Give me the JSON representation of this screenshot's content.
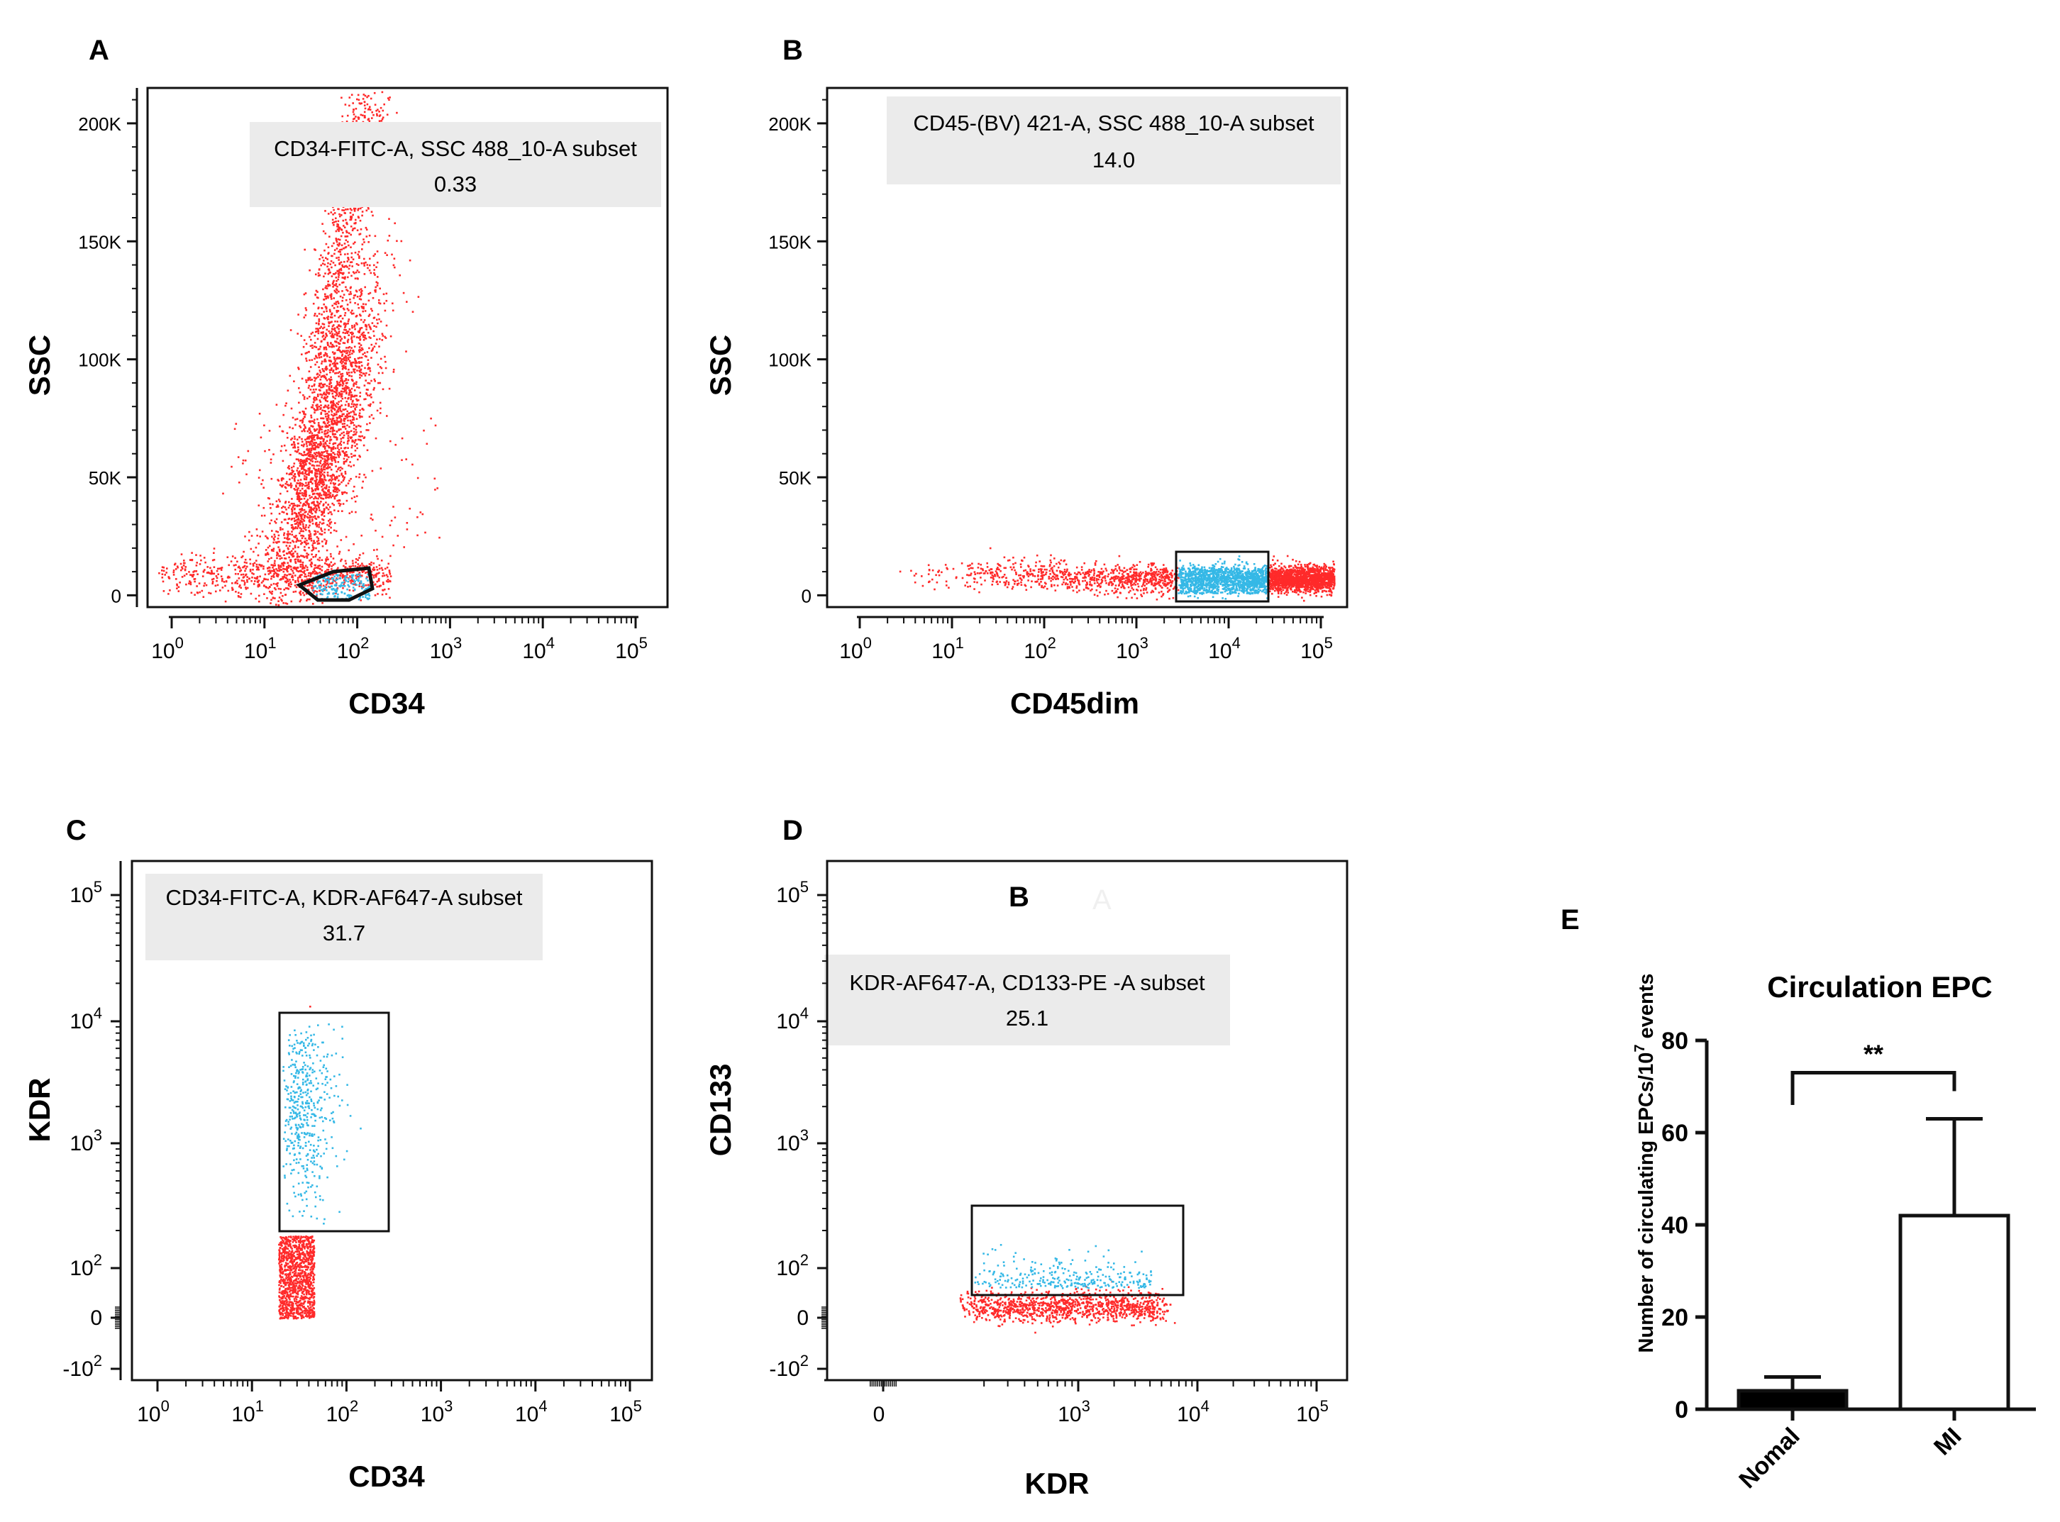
{
  "figure": {
    "panels": [
      {
        "letter": "A",
        "xlabel": "CD34",
        "ylabel": "SSC",
        "gate_title": "CD34-FITC-A, SSC 488_10-A subset",
        "gate_value": "0.33"
      },
      {
        "letter": "B",
        "xlabel": "CD45dim",
        "ylabel": "SSC",
        "gate_title": "CD45-(BV) 421-A, SSC 488_10-A subset",
        "gate_value": "14.0"
      },
      {
        "letter": "C",
        "xlabel": "CD34",
        "ylabel": "KDR",
        "gate_title": "CD34-FITC-A, KDR-AF647-A subset",
        "gate_value": "31.7"
      },
      {
        "letter": "D",
        "xlabel": "KDR",
        "ylabel": "CD133",
        "gate_title": "KDR-AF647-A, CD133-PE -A subset",
        "gate_value": "25.1",
        "overlay_label": "B",
        "overlay_faint": "A"
      },
      {
        "letter": "E"
      }
    ]
  },
  "chart_data": [
    {
      "type": "scatter",
      "panel": "A",
      "title": "",
      "xlabel": "CD34",
      "ylabel": "SSC",
      "x_scale": "log",
      "xlim": [
        1,
        100000
      ],
      "ylim": [
        -5000,
        215000
      ],
      "x_ticks": [
        {
          "base": "10",
          "exp": "0"
        },
        {
          "base": "10",
          "exp": "1"
        },
        {
          "base": "10",
          "exp": "2"
        },
        {
          "base": "10",
          "exp": "3"
        },
        {
          "base": "10",
          "exp": "4"
        },
        {
          "base": "10",
          "exp": "5"
        }
      ],
      "y_ticks": [
        {
          "label": "0",
          "value": 0
        },
        {
          "label": "50K",
          "value": 50000
        },
        {
          "label": "100K",
          "value": 100000
        },
        {
          "label": "150K",
          "value": 150000
        },
        {
          "label": "200K",
          "value": 200000
        }
      ],
      "gate": {
        "name": "CD34-FITC-A, SSC 488_10-A subset",
        "percent": 0.33,
        "shape": "polygon",
        "x_range": [
          25,
          200
        ],
        "y_range": [
          2000,
          15000
        ]
      },
      "populations": [
        {
          "name": "ungated",
          "color": "#ff2a2a"
        },
        {
          "name": "gated",
          "color": "#35b8e6"
        }
      ]
    },
    {
      "type": "scatter",
      "panel": "B",
      "title": "",
      "xlabel": "CD45dim",
      "ylabel": "SSC",
      "x_scale": "log",
      "xlim": [
        1,
        100000
      ],
      "ylim": [
        -5000,
        215000
      ],
      "x_ticks": [
        {
          "base": "10",
          "exp": "0"
        },
        {
          "base": "10",
          "exp": "1"
        },
        {
          "base": "10",
          "exp": "2"
        },
        {
          "base": "10",
          "exp": "3"
        },
        {
          "base": "10",
          "exp": "4"
        },
        {
          "base": "10",
          "exp": "5"
        }
      ],
      "y_ticks": [
        {
          "label": "0",
          "value": 0
        },
        {
          "label": "50K",
          "value": 50000
        },
        {
          "label": "100K",
          "value": 100000
        },
        {
          "label": "150K",
          "value": 150000
        },
        {
          "label": "200K",
          "value": 200000
        }
      ],
      "gate": {
        "name": "CD45-(BV) 421-A, SSC 488_10-A subset",
        "percent": 14.0,
        "shape": "rectangle",
        "x_range": [
          3500,
          30000
        ],
        "y_range": [
          0,
          21000
        ]
      },
      "populations": [
        {
          "name": "ungated",
          "color": "#ff2a2a"
        },
        {
          "name": "gated",
          "color": "#35b8e6"
        }
      ]
    },
    {
      "type": "scatter",
      "panel": "C",
      "title": "",
      "xlabel": "CD34",
      "ylabel": "KDR",
      "x_scale": "log",
      "y_scale": "biexponential",
      "xlim": [
        1,
        100000
      ],
      "x_ticks": [
        {
          "base": "10",
          "exp": "0"
        },
        {
          "base": "10",
          "exp": "1"
        },
        {
          "base": "10",
          "exp": "2"
        },
        {
          "base": "10",
          "exp": "3"
        },
        {
          "base": "10",
          "exp": "4"
        },
        {
          "base": "10",
          "exp": "5"
        }
      ],
      "y_ticks": [
        {
          "label": "-10",
          "exp": "2"
        },
        {
          "label": "0",
          "exp": ""
        },
        {
          "label": "10",
          "exp": "2"
        },
        {
          "label": "10",
          "exp": "3"
        },
        {
          "label": "10",
          "exp": "4"
        },
        {
          "label": "10",
          "exp": "5"
        }
      ],
      "gate": {
        "name": "CD34-FITC-A, KDR-AF647-A subset",
        "percent": 31.7,
        "shape": "rectangle",
        "x_range": [
          40,
          400
        ],
        "y_range": [
          200,
          11000
        ]
      },
      "populations": [
        {
          "name": "ungated",
          "color": "#ff2a2a"
        },
        {
          "name": "gated",
          "color": "#35b8e6"
        }
      ]
    },
    {
      "type": "scatter",
      "panel": "D",
      "title": "",
      "xlabel": "KDR",
      "ylabel": "CD133",
      "x_scale": "biexponential",
      "y_scale": "biexponential",
      "x_ticks": [
        {
          "label": "0",
          "exp": ""
        },
        {
          "label": "10",
          "exp": "3"
        },
        {
          "label": "10",
          "exp": "4"
        },
        {
          "label": "10",
          "exp": "5"
        }
      ],
      "y_ticks": [
        {
          "label": "-10",
          "exp": "2"
        },
        {
          "label": "0",
          "exp": ""
        },
        {
          "label": "10",
          "exp": "2"
        },
        {
          "label": "10",
          "exp": "3"
        },
        {
          "label": "10",
          "exp": "4"
        },
        {
          "label": "10",
          "exp": "5"
        }
      ],
      "gate": {
        "name": "KDR-AF647-A, CD133-PE -A subset",
        "percent": 25.1,
        "shape": "rectangle",
        "x_range": [
          150,
          9000
        ],
        "y_range": [
          60,
          330
        ]
      },
      "populations": [
        {
          "name": "ungated",
          "color": "#ff2a2a"
        },
        {
          "name": "gated",
          "color": "#35b8e6"
        }
      ]
    },
    {
      "type": "bar",
      "panel": "E",
      "title": "Circulation EPC",
      "xlabel": "",
      "ylabel": "Number of circulating EPCs/10",
      "ylabel_superscript": "7",
      "ylabel_suffix": " events",
      "categories": [
        "Nomal",
        "MI"
      ],
      "values": [
        4,
        42
      ],
      "error_upper": [
        7,
        63
      ],
      "bar_fill": [
        "#000000",
        "#ffffff"
      ],
      "ylim": [
        0,
        80
      ],
      "y_ticks": [
        "0",
        "20",
        "40",
        "60",
        "80"
      ],
      "significance": "**"
    }
  ]
}
